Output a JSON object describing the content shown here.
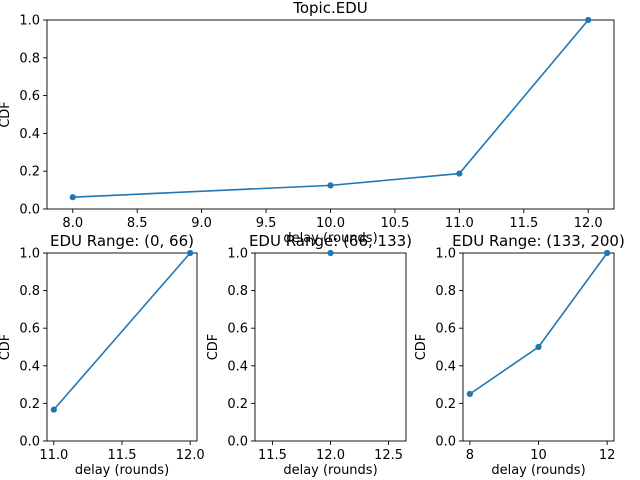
{
  "line_color": "#1f77b4",
  "chart_data": [
    {
      "type": "line",
      "title": "Topic.EDU",
      "xlabel": "delay (rounds)",
      "ylabel": "CDF",
      "xlim": [
        7.8,
        12.2
      ],
      "ylim": [
        0.0,
        1.0
      ],
      "xticks": [
        "8.0",
        "8.5",
        "9.0",
        "9.5",
        "10.0",
        "10.5",
        "11.0",
        "11.5",
        "12.0"
      ],
      "xtick_values": [
        8.0,
        8.5,
        9.0,
        9.5,
        10.0,
        10.5,
        11.0,
        11.5,
        12.0
      ],
      "yticks": [
        "0.0",
        "0.2",
        "0.4",
        "0.6",
        "0.8",
        "1.0"
      ],
      "ytick_values": [
        0.0,
        0.2,
        0.4,
        0.6,
        0.8,
        1.0
      ],
      "x": [
        8,
        10,
        11,
        12
      ],
      "y": [
        0.0625,
        0.125,
        0.1875,
        1.0
      ],
      "grid": false,
      "legend": "none"
    },
    {
      "type": "line",
      "title": "EDU Range: (0, 66)",
      "xlabel": "delay (rounds)",
      "ylabel": "CDF",
      "xlim": [
        10.95,
        12.05
      ],
      "ylim": [
        0.0,
        1.0
      ],
      "xticks": [
        "11.0",
        "11.5",
        "12.0"
      ],
      "xtick_values": [
        11.0,
        11.5,
        12.0
      ],
      "yticks": [
        "0.0",
        "0.2",
        "0.4",
        "0.6",
        "0.8",
        "1.0"
      ],
      "ytick_values": [
        0.0,
        0.2,
        0.4,
        0.6,
        0.8,
        1.0
      ],
      "x": [
        11,
        12
      ],
      "y": [
        0.1667,
        1.0
      ],
      "grid": false,
      "legend": "none"
    },
    {
      "type": "line",
      "title": "EDU Range: (66, 133)",
      "xlabel": "delay (rounds)",
      "ylabel": "CDF",
      "xlim": [
        11.35,
        12.65
      ],
      "ylim": [
        0.0,
        1.0
      ],
      "xticks": [
        "11.5",
        "12.0",
        "12.5"
      ],
      "xtick_values": [
        11.5,
        12.0,
        12.5
      ],
      "yticks": [
        "0.0",
        "0.2",
        "0.4",
        "0.6",
        "0.8",
        "1.0"
      ],
      "ytick_values": [
        0.0,
        0.2,
        0.4,
        0.6,
        0.8,
        1.0
      ],
      "x": [
        12
      ],
      "y": [
        1.0
      ],
      "grid": false,
      "legend": "none"
    },
    {
      "type": "line",
      "title": "EDU Range: (133, 200)",
      "xlabel": "delay (rounds)",
      "ylabel": "CDF",
      "xlim": [
        7.8,
        12.2
      ],
      "ylim": [
        0.0,
        1.0
      ],
      "xticks": [
        "8",
        "10",
        "12"
      ],
      "xtick_values": [
        8,
        10,
        12
      ],
      "yticks": [
        "0.0",
        "0.2",
        "0.4",
        "0.6",
        "0.8",
        "1.0"
      ],
      "ytick_values": [
        0.0,
        0.2,
        0.4,
        0.6,
        0.8,
        1.0
      ],
      "x": [
        8,
        10,
        12
      ],
      "y": [
        0.25,
        0.5,
        1.0
      ],
      "grid": false,
      "legend": "none"
    }
  ]
}
